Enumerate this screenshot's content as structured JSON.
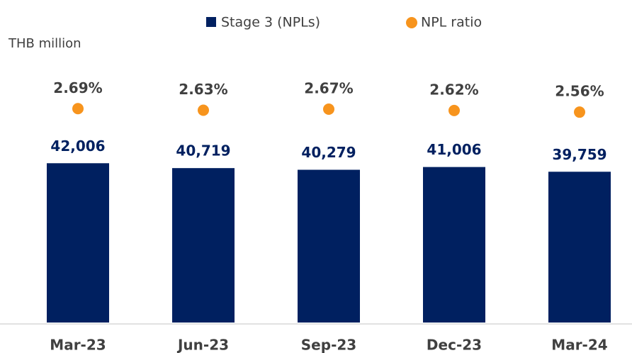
{
  "chart_data": {
    "type": "bar",
    "y_label": "THB million",
    "categories": [
      "Mar-23",
      "Jun-23",
      "Sep-23",
      "Dec-23",
      "Mar-24"
    ],
    "series": [
      {
        "name": "Stage 3 (NPLs)",
        "color": "#002060",
        "values": [
          42006,
          40719,
          40279,
          41006,
          39759
        ],
        "value_labels": [
          "42,006",
          "40,719",
          "40,279",
          "41,006",
          "39,759"
        ]
      },
      {
        "name": "NPL ratio",
        "color": "#f7941d",
        "axis": "y2",
        "values": [
          2.69,
          2.63,
          2.67,
          2.62,
          2.56
        ],
        "value_labels": [
          "2.69%",
          "2.63%",
          "2.67%",
          "2.62%",
          "2.56%"
        ]
      }
    ],
    "ylim": [
      0,
      60000
    ],
    "y2lim": [
      -5.3,
      3.2
    ],
    "legend": "top"
  }
}
